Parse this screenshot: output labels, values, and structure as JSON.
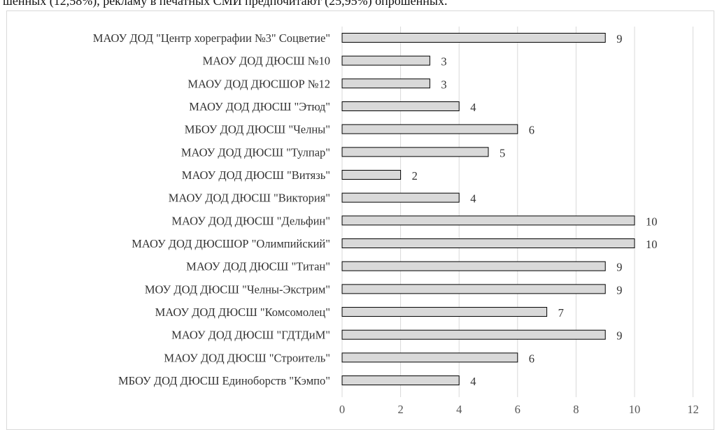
{
  "header_text": "шенных (12,58%), рекламу в печатных СМИ предпочитают (25,95%) опрошенных.",
  "chart_data": {
    "type": "bar",
    "orientation": "horizontal",
    "categories": [
      "МАОУ ДОД \"Центр хореграфии №3\" Соцветие\"",
      "МАОУ ДОД ДЮСШ №10",
      "МАОУ ДОД ДЮСШОР №12",
      "МАОУ ДОД ДЮСШ \"Этюд\"",
      "МБОУ ДОД ДЮСШ \"Челны\"",
      "МАОУ ДОД ДЮСШ \"Тулпар\"",
      "МАОУ ДОД ДЮСШ \"Витязь\"",
      "МАОУ ДОД ДЮСШ \"Виктория\"",
      "МАОУ ДОД ДЮСШ \"Дельфин\"",
      "МАОУ ДОД ДЮСШОР \"Олимпийский\"",
      "МАОУ ДОД ДЮСШ \"Титан\"",
      "МОУ ДОД ДЮСШ \"Челны-Экстрим\"",
      "МАОУ ДОД ДЮСШ \"Комсомолец\"",
      "МАОУ ДОД ДЮСШ \"ГДТДиМ\"",
      "МАОУ ДОД ДЮСШ \"Строитель\"",
      "МБОУ ДОД ДЮСШ Единоборств \"Кэмпо\""
    ],
    "values": [
      9,
      3,
      3,
      4,
      6,
      5,
      2,
      4,
      10,
      10,
      9,
      9,
      7,
      9,
      6,
      4
    ],
    "xlim": [
      0,
      12
    ],
    "xticks": [
      "0",
      "2",
      "4",
      "6",
      "8",
      "10",
      "12"
    ],
    "grid": true,
    "bar_color": "#d9d9d9",
    "bar_edge_color": "#000000",
    "grid_color": "#d9d9d9"
  }
}
